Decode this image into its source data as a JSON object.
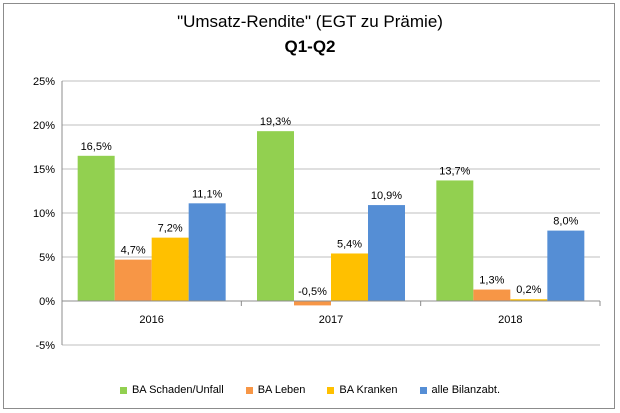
{
  "chart_data": {
    "type": "bar",
    "title": "\"Umsatz-Rendite\" (EGT zu Prämie)",
    "subtitle": "Q1-Q2",
    "categories": [
      "2016",
      "2017",
      "2018"
    ],
    "series": [
      {
        "name": "BA Schaden/Unfall",
        "color": "#92d050",
        "values": [
          16.5,
          19.3,
          13.7
        ],
        "labels": [
          "16,5%",
          "19,3%",
          "13,7%"
        ]
      },
      {
        "name": "BA Leben",
        "color": "#f79646",
        "values": [
          4.7,
          -0.5,
          1.3
        ],
        "labels": [
          "4,7%",
          "-0,5%",
          "1,3%"
        ]
      },
      {
        "name": "BA Kranken",
        "color": "#ffc000",
        "values": [
          7.2,
          5.4,
          0.2
        ],
        "labels": [
          "7,2%",
          "5,4%",
          "0,2%"
        ]
      },
      {
        "name": "alle Bilanzabt.",
        "color": "#558ed5",
        "values": [
          11.1,
          10.9,
          8.0
        ],
        "labels": [
          "11,1%",
          "10,9%",
          "8,0%"
        ]
      }
    ],
    "ylim": [
      -5,
      25
    ],
    "yticks": [
      25,
      20,
      15,
      10,
      5,
      0,
      -5
    ],
    "ytick_labels": [
      "25%",
      "20%",
      "15%",
      "10%",
      "5%",
      "0%",
      "-5%"
    ],
    "grid": true,
    "legend_position": "bottom"
  }
}
